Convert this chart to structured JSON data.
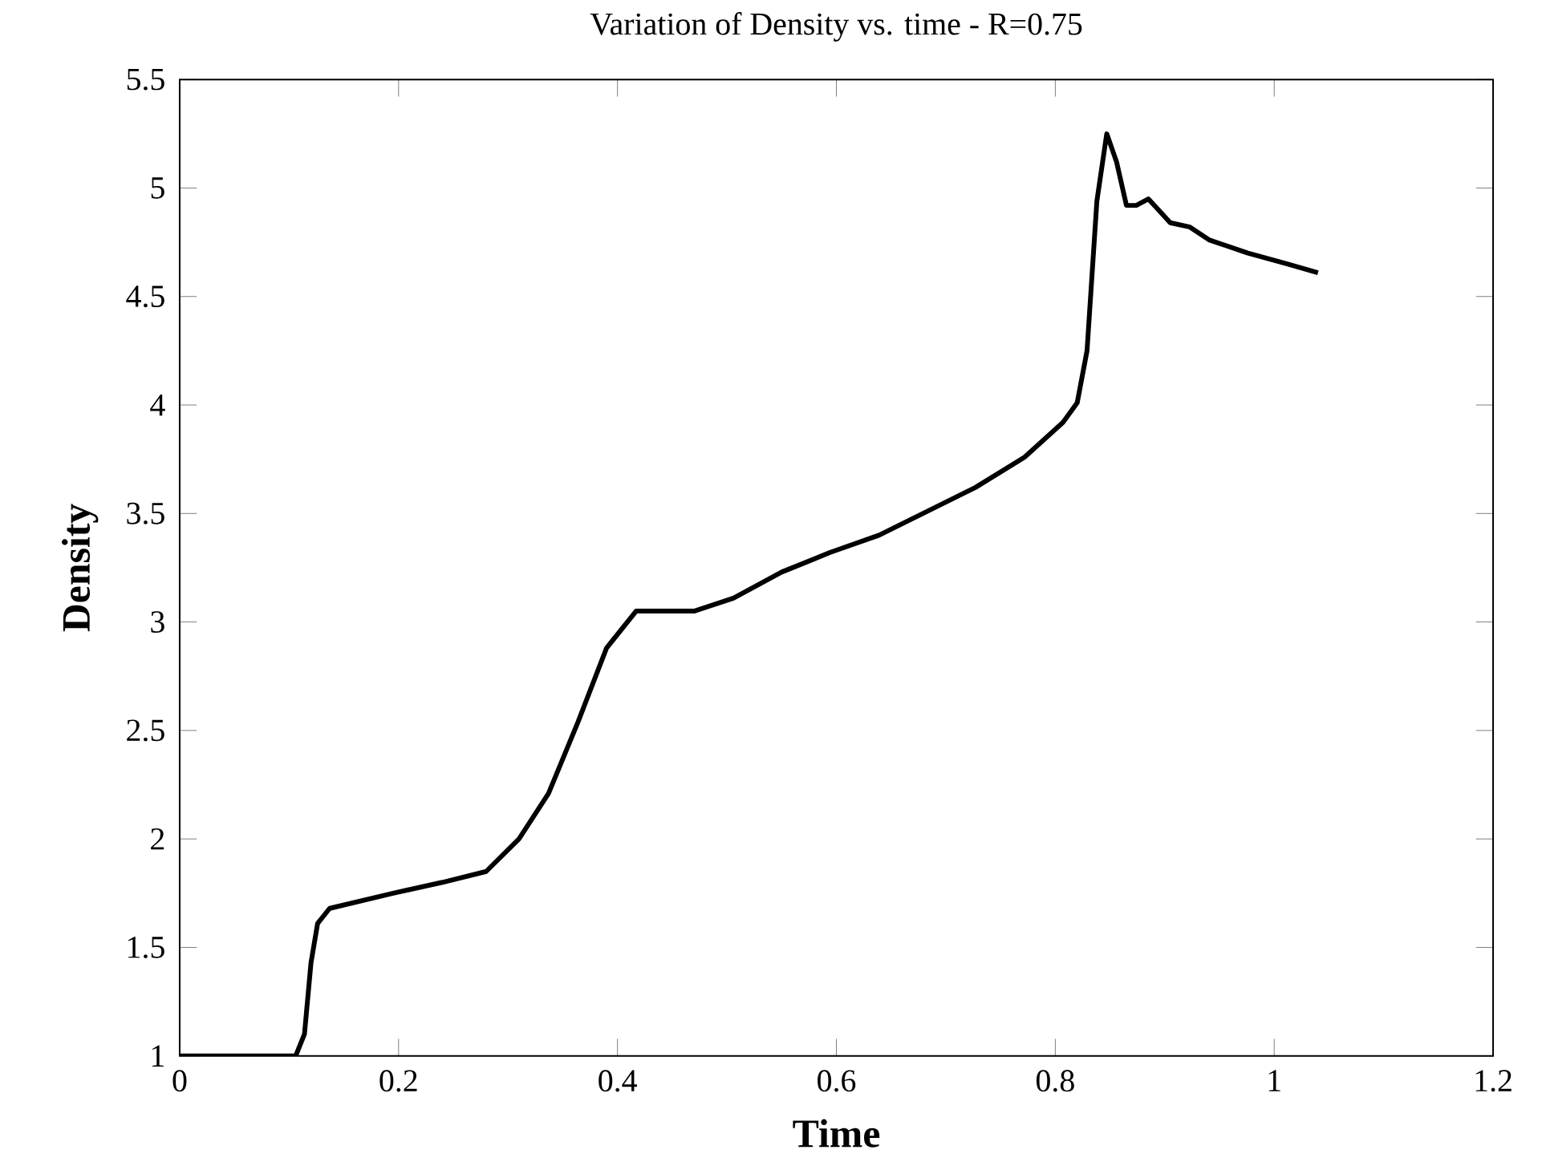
{
  "chart_data": {
    "type": "line",
    "title": "Variation of Density vs. time - R=0.75",
    "xlabel": "Time",
    "ylabel": "Density",
    "color": "#000000",
    "x": [
      0,
      0.106,
      0.114,
      0.12,
      0.126,
      0.137,
      0.195,
      0.24,
      0.28,
      0.31,
      0.337,
      0.364,
      0.39,
      0.417,
      0.443,
      0.47,
      0.506,
      0.55,
      0.594,
      0.639,
      0.683,
      0.727,
      0.772,
      0.807,
      0.82,
      0.829,
      0.838,
      0.847,
      0.856,
      0.865,
      0.874,
      0.885,
      0.896,
      0.905,
      0.923,
      0.941,
      0.976,
      1.012,
      1.04
    ],
    "values": [
      1,
      1,
      1.1,
      1.43,
      1.61,
      1.68,
      1.75,
      1.8,
      1.85,
      2.0,
      2.21,
      2.54,
      2.88,
      3.05,
      3.05,
      3.05,
      3.11,
      3.23,
      3.32,
      3.4,
      3.51,
      3.62,
      3.76,
      3.92,
      4.01,
      4.25,
      4.94,
      5.25,
      5.12,
      4.92,
      4.92,
      4.95,
      4.89,
      4.84,
      4.82,
      4.76,
      4.7,
      4.65,
      4.61
    ],
    "xlim": [
      0,
      1.2
    ],
    "ylim": [
      1,
      5.5
    ],
    "xticks": [
      0,
      0.2,
      0.4,
      0.6,
      0.8,
      1,
      1.2
    ],
    "yticks": [
      1,
      1.5,
      2,
      2.5,
      3,
      3.5,
      4,
      4.5,
      5,
      5.5
    ],
    "grid": false,
    "marker": "none",
    "line_style": "solid"
  }
}
